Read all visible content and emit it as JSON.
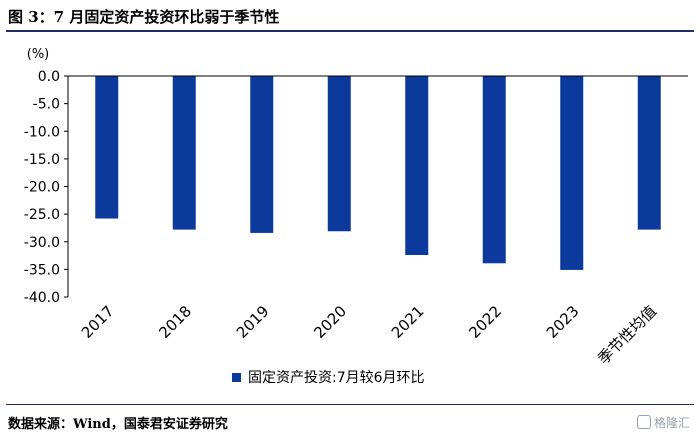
{
  "title": "图 3：7 月固定资产投资环比弱于季节性",
  "source": "数据来源：Wind，国泰君安证券研究",
  "watermark": "格隆汇",
  "colors": {
    "bar": "#0b3a9c",
    "rule": "#1f2d6b"
  },
  "chart_data": {
    "type": "bar",
    "ylabel": "(%)",
    "ylim": [
      -40,
      0
    ],
    "yticks": [
      0,
      -5,
      -10,
      -15,
      -20,
      -25,
      -30,
      -35,
      -40
    ],
    "ytick_labels": [
      "0.0",
      "-5.0",
      "-10.0",
      "-15.0",
      "-20.0",
      "-25.0",
      "-30.0",
      "-35.0",
      "-40.0"
    ],
    "categories": [
      "2017",
      "2018",
      "2019",
      "2020",
      "2021",
      "2022",
      "2023",
      "季节性均值"
    ],
    "series": [
      {
        "name": "固定资产投资:7月较6月环比",
        "values": [
          -25.8,
          -27.8,
          -28.4,
          -28.1,
          -32.4,
          -33.9,
          -35.1,
          -27.8
        ]
      }
    ],
    "grid": false,
    "legend": "bottom-center"
  }
}
